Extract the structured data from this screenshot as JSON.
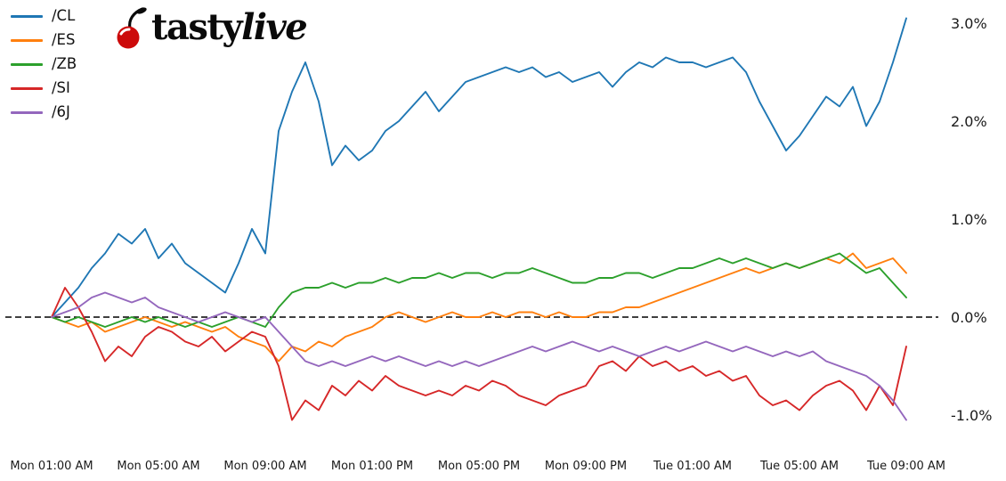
{
  "logo": {
    "brand_prefix": "tasty",
    "brand_suffix": "live",
    "cherry_color": "#cc0a0a"
  },
  "axes": {
    "zero_line_color": "#000000",
    "background": "#ffffff"
  },
  "chart_data": {
    "type": "line",
    "title": "",
    "xlabel": "",
    "ylabel": "",
    "x_tick_labels": [
      "Mon 01:00 AM",
      "Mon 05:00 AM",
      "Mon 09:00 AM",
      "Mon 01:00 PM",
      "Mon 05:00 PM",
      "Mon 09:00 PM",
      "Tue 01:00 AM",
      "Tue 05:00 AM",
      "Tue 09:00 AM"
    ],
    "x_sampling": "30-minute intervals from Mon 01:00 AM to Tue 09:00 AM (65 points)",
    "y_ticks": [
      {
        "label": "3.0%",
        "value": 3.0
      },
      {
        "label": "2.0%",
        "value": 2.0
      },
      {
        "label": "1.0%",
        "value": 1.0
      },
      {
        "label": "0.0%",
        "value": 0.0
      },
      {
        "label": "-1.0%",
        "value": -1.0
      }
    ],
    "ylim": [
      -1.25,
      3.2
    ],
    "grid": false,
    "zero_dashed_line": true,
    "legend_position": "upper-left",
    "series": [
      {
        "name": "/CL",
        "color": "#1f77b4",
        "values": [
          0.0,
          0.15,
          0.3,
          0.5,
          0.65,
          0.85,
          0.75,
          0.9,
          0.6,
          0.75,
          0.55,
          0.45,
          0.35,
          0.25,
          0.55,
          0.9,
          0.65,
          1.9,
          2.3,
          2.6,
          2.2,
          1.55,
          1.75,
          1.6,
          1.7,
          1.9,
          2.0,
          2.15,
          2.3,
          2.1,
          2.25,
          2.4,
          2.45,
          2.5,
          2.55,
          2.5,
          2.55,
          2.45,
          2.5,
          2.4,
          2.45,
          2.5,
          2.35,
          2.5,
          2.6,
          2.55,
          2.65,
          2.6,
          2.6,
          2.55,
          2.6,
          2.65,
          2.5,
          2.2,
          1.95,
          1.7,
          1.85,
          2.05,
          2.25,
          2.15,
          2.35,
          1.95,
          2.2,
          2.6,
          3.05
        ]
      },
      {
        "name": "/ES",
        "color": "#ff7f0e",
        "values": [
          0.0,
          -0.05,
          -0.1,
          -0.05,
          -0.15,
          -0.1,
          -0.05,
          0.0,
          -0.05,
          -0.1,
          -0.05,
          -0.1,
          -0.15,
          -0.1,
          -0.2,
          -0.25,
          -0.3,
          -0.45,
          -0.3,
          -0.35,
          -0.25,
          -0.3,
          -0.2,
          -0.15,
          -0.1,
          0.0,
          0.05,
          0.0,
          -0.05,
          0.0,
          0.05,
          0.0,
          0.0,
          0.05,
          0.0,
          0.05,
          0.05,
          0.0,
          0.05,
          0.0,
          0.0,
          0.05,
          0.05,
          0.1,
          0.1,
          0.15,
          0.2,
          0.25,
          0.3,
          0.35,
          0.4,
          0.45,
          0.5,
          0.45,
          0.5,
          0.55,
          0.5,
          0.55,
          0.6,
          0.55,
          0.65,
          0.5,
          0.55,
          0.6,
          0.45
        ]
      },
      {
        "name": "/ZB",
        "color": "#2ca02c",
        "values": [
          0.0,
          -0.05,
          0.0,
          -0.05,
          -0.1,
          -0.05,
          0.0,
          -0.05,
          0.0,
          -0.05,
          -0.1,
          -0.05,
          -0.1,
          -0.05,
          0.0,
          -0.05,
          -0.1,
          0.1,
          0.25,
          0.3,
          0.3,
          0.35,
          0.3,
          0.35,
          0.35,
          0.4,
          0.35,
          0.4,
          0.4,
          0.45,
          0.4,
          0.45,
          0.45,
          0.4,
          0.45,
          0.45,
          0.5,
          0.45,
          0.4,
          0.35,
          0.35,
          0.4,
          0.4,
          0.45,
          0.45,
          0.4,
          0.45,
          0.5,
          0.5,
          0.55,
          0.6,
          0.55,
          0.6,
          0.55,
          0.5,
          0.55,
          0.5,
          0.55,
          0.6,
          0.65,
          0.55,
          0.45,
          0.5,
          0.35,
          0.2
        ]
      },
      {
        "name": "/SI",
        "color": "#d62728",
        "values": [
          0.0,
          0.3,
          0.1,
          -0.15,
          -0.45,
          -0.3,
          -0.4,
          -0.2,
          -0.1,
          -0.15,
          -0.25,
          -0.3,
          -0.2,
          -0.35,
          -0.25,
          -0.15,
          -0.2,
          -0.5,
          -1.05,
          -0.85,
          -0.95,
          -0.7,
          -0.8,
          -0.65,
          -0.75,
          -0.6,
          -0.7,
          -0.75,
          -0.8,
          -0.75,
          -0.8,
          -0.7,
          -0.75,
          -0.65,
          -0.7,
          -0.8,
          -0.85,
          -0.9,
          -0.8,
          -0.75,
          -0.7,
          -0.5,
          -0.45,
          -0.55,
          -0.4,
          -0.5,
          -0.45,
          -0.55,
          -0.5,
          -0.6,
          -0.55,
          -0.65,
          -0.6,
          -0.8,
          -0.9,
          -0.85,
          -0.95,
          -0.8,
          -0.7,
          -0.65,
          -0.75,
          -0.95,
          -0.7,
          -0.9,
          -0.3
        ]
      },
      {
        "name": "/6J",
        "color": "#9467bd",
        "values": [
          0.0,
          0.05,
          0.1,
          0.2,
          0.25,
          0.2,
          0.15,
          0.2,
          0.1,
          0.05,
          0.0,
          -0.05,
          0.0,
          0.05,
          0.0,
          -0.05,
          0.0,
          -0.15,
          -0.3,
          -0.45,
          -0.5,
          -0.45,
          -0.5,
          -0.45,
          -0.4,
          -0.45,
          -0.4,
          -0.45,
          -0.5,
          -0.45,
          -0.5,
          -0.45,
          -0.5,
          -0.45,
          -0.4,
          -0.35,
          -0.3,
          -0.35,
          -0.3,
          -0.25,
          -0.3,
          -0.35,
          -0.3,
          -0.35,
          -0.4,
          -0.35,
          -0.3,
          -0.35,
          -0.3,
          -0.25,
          -0.3,
          -0.35,
          -0.3,
          -0.35,
          -0.4,
          -0.35,
          -0.4,
          -0.35,
          -0.45,
          -0.5,
          -0.55,
          -0.6,
          -0.7,
          -0.85,
          -1.05
        ]
      }
    ]
  }
}
